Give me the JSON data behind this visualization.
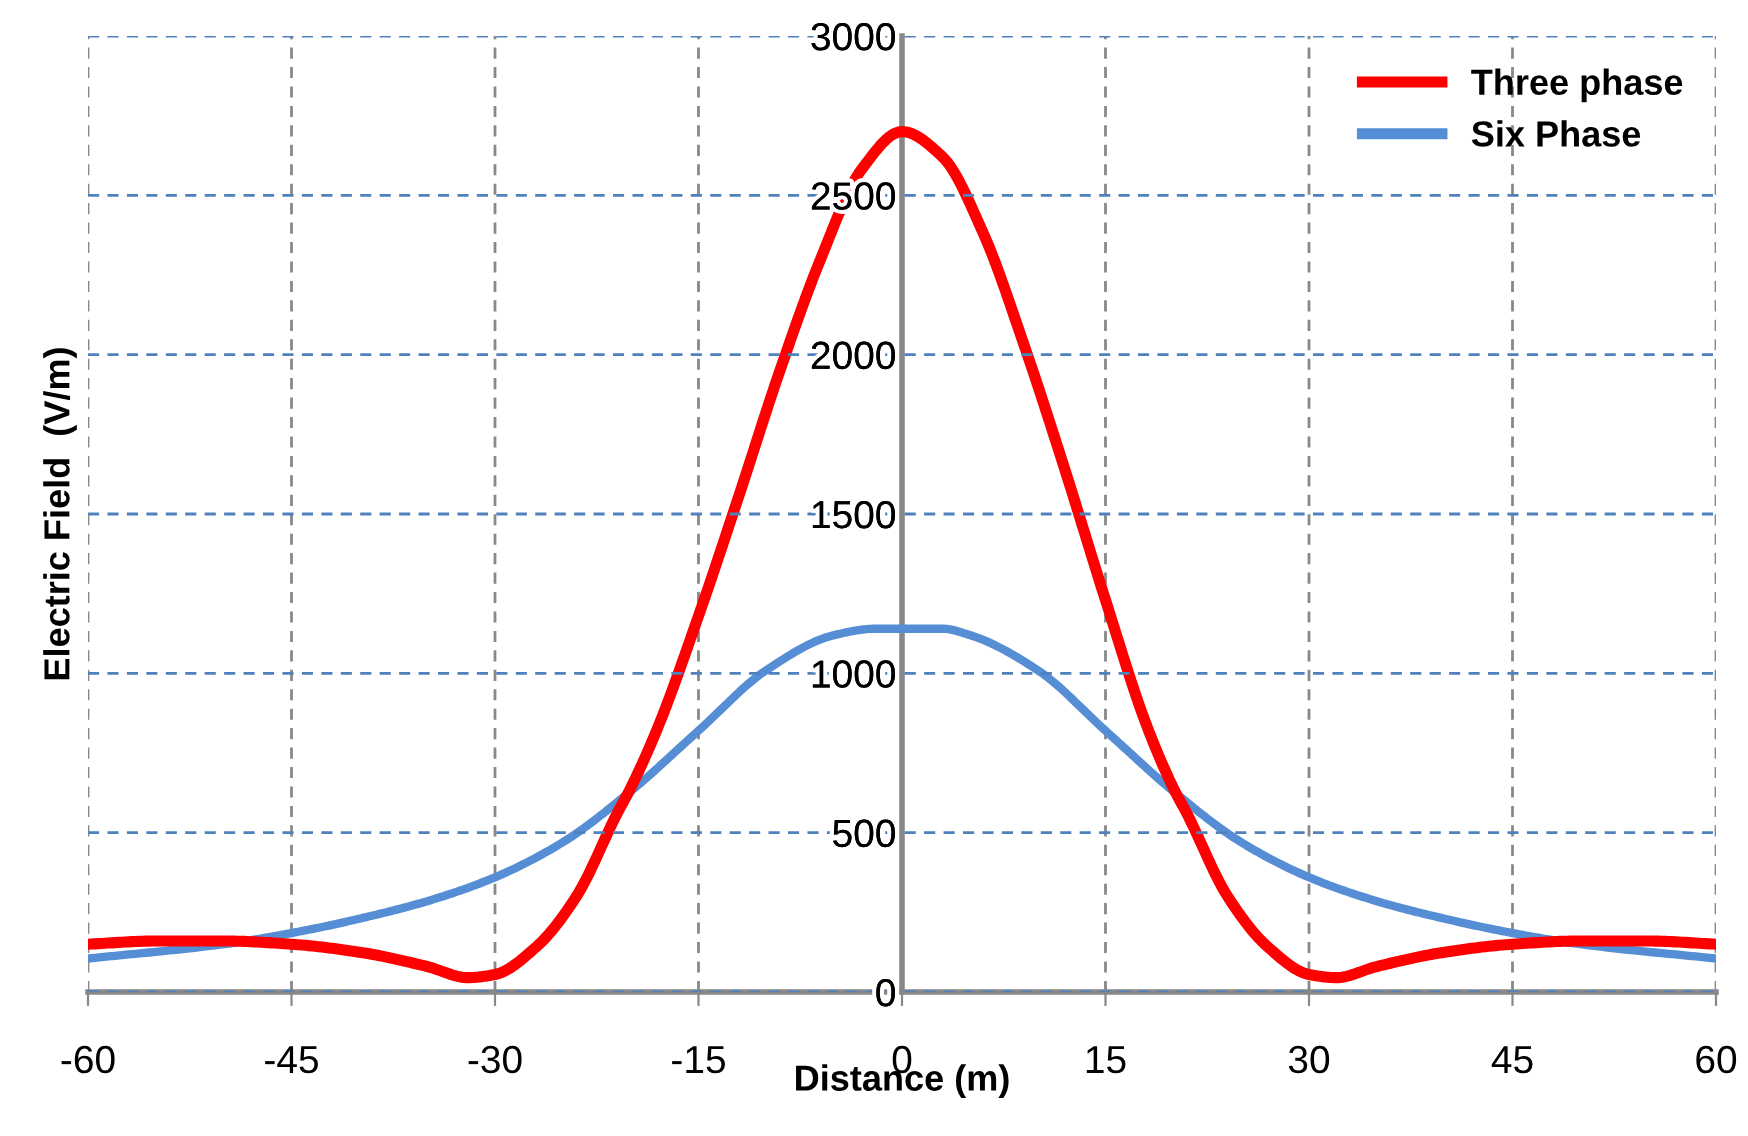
{
  "chart_data": {
    "type": "line",
    "xlabel": "Distance (m)",
    "ylabel": "Electric Field  (V/m)",
    "xlim": [
      -60,
      60
    ],
    "xticks": [
      -60,
      -45,
      -30,
      -15,
      0,
      15,
      30,
      45,
      60
    ],
    "ylim": [
      0,
      3000
    ],
    "yticks": [
      0,
      500,
      1000,
      1500,
      2000,
      2500,
      3000
    ],
    "grid": true,
    "legend": "top right",
    "marker": "none",
    "line_style": "solid",
    "series": [
      {
        "name": "Three phase",
        "color": "#ff0000",
        "x": [
          -60,
          -55,
          -50,
          -45,
          -40,
          -35,
          -32,
          -30,
          -27,
          -24,
          -21,
          -20,
          -18,
          -15,
          -12,
          -9,
          -6,
          -3,
          0,
          3,
          6,
          9,
          12,
          15,
          18,
          20,
          21,
          24,
          27,
          30,
          32,
          35,
          40,
          45,
          50,
          55,
          60
        ],
        "values": [
          150,
          160,
          160,
          150,
          125,
          80,
          45,
          55,
          140,
          300,
          560,
          640,
          830,
          1180,
          1560,
          1950,
          2300,
          2580,
          2700,
          2620,
          2380,
          2030,
          1640,
          1230,
          840,
          640,
          560,
          300,
          140,
          55,
          45,
          80,
          125,
          150,
          160,
          160,
          150
        ]
      },
      {
        "name": "Six Phase",
        "color": "#558ed5",
        "x": [
          -60,
          -50,
          -45,
          -40,
          -35,
          -30,
          -25,
          -20,
          -15,
          -10,
          -5,
          -2,
          0,
          3,
          5,
          10,
          15,
          20,
          25,
          30,
          35,
          40,
          45,
          50,
          60
        ],
        "values": [
          105,
          150,
          185,
          230,
          285,
          360,
          470,
          630,
          820,
          1010,
          1120,
          1140,
          1140,
          1140,
          1120,
          1010,
          820,
          630,
          470,
          360,
          285,
          230,
          185,
          150,
          105
        ]
      }
    ]
  }
}
